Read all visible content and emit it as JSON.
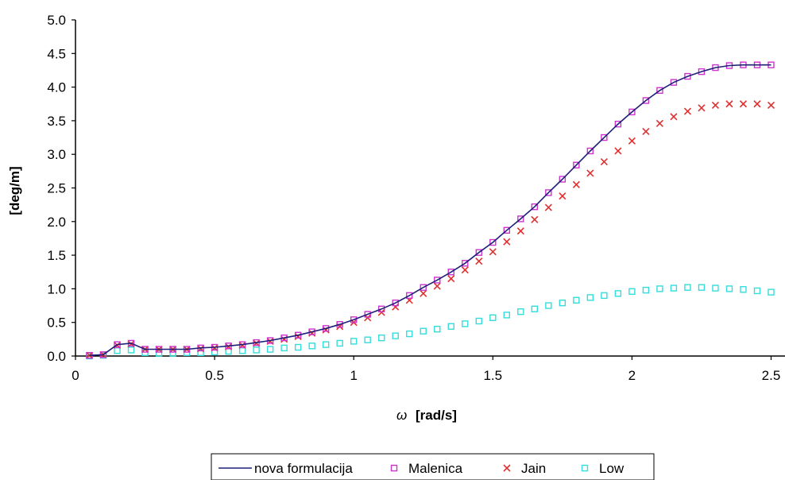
{
  "chart_data": {
    "type": "line",
    "title": "",
    "xlabel_symbol": "ω",
    "xlabel_unit": "[rad/s]",
    "ylabel": "[deg/m]",
    "xlim": [
      0,
      2.55
    ],
    "ylim": [
      0,
      5.0
    ],
    "xticks": [
      0,
      0.5,
      1,
      1.5,
      2,
      2.5
    ],
    "xtick_labels": [
      "0",
      "0.5",
      "1",
      "1.5",
      "2",
      "2.5"
    ],
    "yticks": [
      0,
      0.5,
      1.0,
      1.5,
      2.0,
      2.5,
      3.0,
      3.5,
      4.0,
      4.5,
      5.0
    ],
    "ytick_labels": [
      "0.0",
      "0.5",
      "1.0",
      "1.5",
      "2.0",
      "2.5",
      "3.0",
      "3.5",
      "4.0",
      "4.5",
      "5.0"
    ],
    "grid": false,
    "legend_position": "bottom",
    "x": [
      0.05,
      0.1,
      0.15,
      0.2,
      0.25,
      0.3,
      0.35,
      0.4,
      0.45,
      0.5,
      0.55,
      0.6,
      0.65,
      0.7,
      0.75,
      0.8,
      0.85,
      0.9,
      0.95,
      1.0,
      1.05,
      1.1,
      1.15,
      1.2,
      1.25,
      1.3,
      1.35,
      1.4,
      1.45,
      1.5,
      1.55,
      1.6,
      1.65,
      1.7,
      1.75,
      1.8,
      1.85,
      1.9,
      1.95,
      2.0,
      2.05,
      2.1,
      2.15,
      2.2,
      2.25,
      2.3,
      2.35,
      2.4,
      2.45,
      2.5
    ],
    "series": [
      {
        "name": "nova formulacija",
        "style": "line",
        "color": "#1f1f7a",
        "values": [
          0.01,
          0.02,
          0.17,
          0.19,
          0.1,
          0.1,
          0.1,
          0.1,
          0.12,
          0.13,
          0.15,
          0.17,
          0.2,
          0.23,
          0.27,
          0.31,
          0.36,
          0.41,
          0.47,
          0.54,
          0.62,
          0.7,
          0.79,
          0.9,
          1.02,
          1.13,
          1.25,
          1.38,
          1.54,
          1.69,
          1.87,
          2.04,
          2.22,
          2.43,
          2.63,
          2.84,
          3.05,
          3.25,
          3.45,
          3.63,
          3.8,
          3.95,
          4.07,
          4.16,
          4.23,
          4.29,
          4.32,
          4.33,
          4.33,
          4.33
        ]
      },
      {
        "name": "Malenica",
        "style": "square",
        "color": "#cc33cc",
        "values": [
          0.01,
          0.02,
          0.17,
          0.19,
          0.1,
          0.1,
          0.1,
          0.1,
          0.12,
          0.13,
          0.15,
          0.17,
          0.2,
          0.23,
          0.27,
          0.31,
          0.36,
          0.41,
          0.47,
          0.54,
          0.62,
          0.7,
          0.79,
          0.9,
          1.02,
          1.13,
          1.25,
          1.38,
          1.54,
          1.69,
          1.87,
          2.04,
          2.22,
          2.43,
          2.63,
          2.84,
          3.05,
          3.25,
          3.45,
          3.63,
          3.8,
          3.95,
          4.07,
          4.16,
          4.23,
          4.29,
          4.32,
          4.33,
          4.33,
          4.33
        ]
      },
      {
        "name": "Jain",
        "style": "cross",
        "color": "#e03030",
        "values": [
          0.01,
          0.02,
          0.16,
          0.18,
          0.1,
          0.1,
          0.1,
          0.1,
          0.11,
          0.12,
          0.14,
          0.16,
          0.19,
          0.22,
          0.25,
          0.29,
          0.34,
          0.39,
          0.44,
          0.5,
          0.57,
          0.65,
          0.73,
          0.83,
          0.93,
          1.04,
          1.15,
          1.28,
          1.41,
          1.55,
          1.7,
          1.86,
          2.03,
          2.21,
          2.38,
          2.55,
          2.72,
          2.89,
          3.05,
          3.2,
          3.34,
          3.46,
          3.56,
          3.64,
          3.69,
          3.73,
          3.75,
          3.75,
          3.75,
          3.73
        ]
      },
      {
        "name": "Low",
        "style": "square",
        "color": "#33dddd",
        "values": [
          0.0,
          0.01,
          0.08,
          0.09,
          0.05,
          0.04,
          0.04,
          0.05,
          0.05,
          0.06,
          0.07,
          0.08,
          0.09,
          0.1,
          0.12,
          0.13,
          0.15,
          0.17,
          0.19,
          0.22,
          0.24,
          0.27,
          0.3,
          0.33,
          0.37,
          0.4,
          0.44,
          0.48,
          0.52,
          0.57,
          0.61,
          0.66,
          0.7,
          0.75,
          0.79,
          0.83,
          0.87,
          0.9,
          0.93,
          0.96,
          0.98,
          1.0,
          1.01,
          1.02,
          1.02,
          1.01,
          1.0,
          0.99,
          0.97,
          0.95
        ]
      }
    ]
  }
}
